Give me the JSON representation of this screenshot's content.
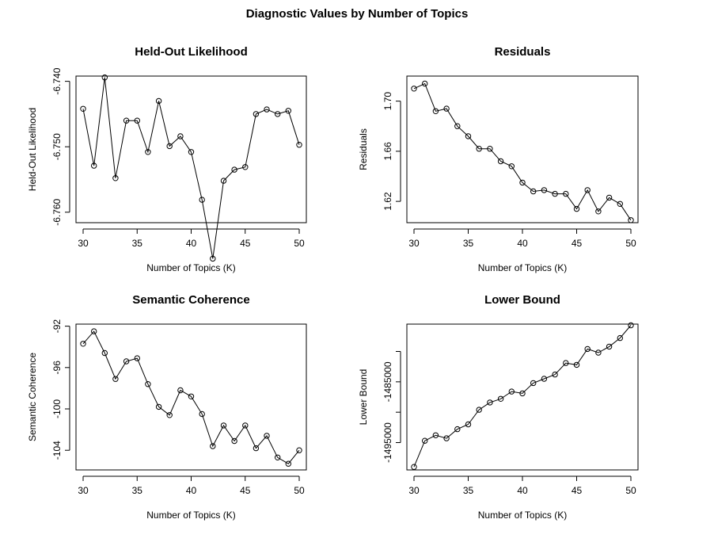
{
  "figure_title": "Diagnostic Values by Number of Topics",
  "chart_data": [
    {
      "type": "line",
      "title": "Held-Out Likelihood",
      "xlabel": "Number of Topics (K)",
      "ylabel": "Held-Out Likelihood",
      "x": [
        30,
        31,
        32,
        33,
        34,
        35,
        36,
        37,
        38,
        39,
        40,
        41,
        42,
        43,
        44,
        45,
        46,
        47,
        48,
        49,
        50
      ],
      "y": [
        -6.7442,
        -6.7529,
        -6.7394,
        -6.7548,
        -6.746,
        -6.746,
        -6.7508,
        -6.743,
        -6.7499,
        -6.7484,
        -6.7508,
        -6.7581,
        -6.7671,
        -6.7552,
        -6.7535,
        -6.7531,
        -6.745,
        -6.7443,
        -6.745,
        -6.7445,
        -6.7497
      ],
      "xlim": [
        30,
        50
      ],
      "ylim": [
        -6.7616,
        -6.7392
      ],
      "xticks": [
        30,
        35,
        40,
        45,
        50
      ],
      "xtick_labels": [
        "30",
        "35",
        "40",
        "45",
        "50"
      ],
      "yticks": [
        -6.74,
        -6.75,
        -6.76
      ],
      "ytick_labels": [
        "-6.740",
        "-6.750",
        "-6.760"
      ],
      "markers": "open-circle",
      "grid": false
    },
    {
      "type": "line",
      "title": "Residuals",
      "xlabel": "Number of Topics (K)",
      "ylabel": "Residuals",
      "x": [
        30,
        31,
        32,
        33,
        34,
        35,
        36,
        37,
        38,
        39,
        40,
        41,
        42,
        43,
        44,
        45,
        46,
        47,
        48,
        49,
        50
      ],
      "y": [
        1.71,
        1.714,
        1.692,
        1.694,
        1.68,
        1.672,
        1.662,
        1.662,
        1.652,
        1.648,
        1.635,
        1.628,
        1.629,
        1.626,
        1.626,
        1.614,
        1.629,
        1.612,
        1.623,
        1.618,
        1.605
      ],
      "xlim": [
        30,
        50
      ],
      "ylim": [
        1.603,
        1.72
      ],
      "xticks": [
        30,
        35,
        40,
        45,
        50
      ],
      "xtick_labels": [
        "30",
        "35",
        "40",
        "45",
        "50"
      ],
      "yticks": [
        1.62,
        1.66,
        1.7
      ],
      "ytick_labels": [
        "1.62",
        "1.66",
        "1.70"
      ],
      "markers": "open-circle",
      "grid": false
    },
    {
      "type": "line",
      "title": "Semantic Coherence",
      "xlabel": "Number of Topics (K)",
      "ylabel": "Semantic Coherence",
      "x": [
        30,
        31,
        32,
        33,
        34,
        35,
        36,
        37,
        38,
        39,
        40,
        41,
        42,
        43,
        44,
        45,
        46,
        47,
        48,
        49,
        50
      ],
      "y": [
        -93.7,
        -92.5,
        -94.6,
        -97.1,
        -95.4,
        -95.1,
        -97.6,
        -99.8,
        -100.6,
        -98.2,
        -98.8,
        -100.5,
        -103.6,
        -101.6,
        -103.1,
        -101.6,
        -103.8,
        -102.6,
        -104.7,
        -105.3,
        -104.0
      ],
      "xlim": [
        30,
        50
      ],
      "ylim": [
        -105.9,
        -91.8
      ],
      "xticks": [
        30,
        35,
        40,
        45,
        50
      ],
      "xtick_labels": [
        "30",
        "35",
        "40",
        "45",
        "50"
      ],
      "yticks": [
        -92,
        -96,
        -100,
        -104
      ],
      "ytick_labels": [
        "-92",
        "-96",
        "-100",
        "-104"
      ],
      "markers": "open-circle",
      "grid": false
    },
    {
      "type": "line",
      "title": "Lower Bound",
      "xlabel": "Number of Topics (K)",
      "ylabel": "Lower Bound",
      "x": [
        30,
        31,
        32,
        33,
        34,
        35,
        36,
        37,
        38,
        39,
        40,
        41,
        42,
        43,
        44,
        45,
        46,
        47,
        48,
        49,
        50
      ],
      "y": [
        -1499000,
        -1494700,
        -1493800,
        -1494300,
        -1492800,
        -1492000,
        -1489600,
        -1488400,
        -1487800,
        -1486600,
        -1486900,
        -1485200,
        -1484500,
        -1483800,
        -1481900,
        -1482200,
        -1479600,
        -1480200,
        -1479200,
        -1477800,
        -1475700
      ],
      "xlim": [
        30,
        50
      ],
      "ylim": [
        -1499500,
        -1475500
      ],
      "xticks": [
        30,
        35,
        40,
        45,
        50
      ],
      "xtick_labels": [
        "30",
        "35",
        "40",
        "45",
        "50"
      ],
      "yticks": [
        -1495000,
        -1490000,
        -1485000,
        -1480000
      ],
      "ytick_labels": [
        "-1495000",
        "",
        "-1485000",
        ""
      ],
      "markers": "open-circle",
      "grid": false
    }
  ]
}
